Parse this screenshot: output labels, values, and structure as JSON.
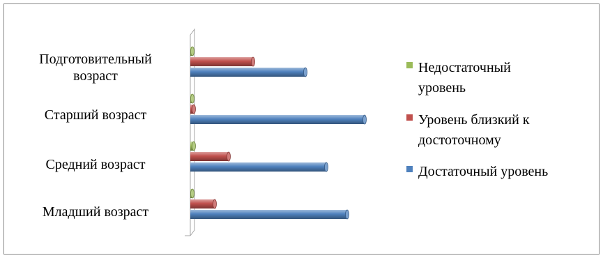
{
  "chart_data": {
    "type": "bar",
    "orientation": "horizontal",
    "categories": [
      [
        "Подготовительный",
        "возраст"
      ],
      [
        "Старший возраст"
      ],
      [
        "Средний возраст"
      ],
      [
        "Младший возраст"
      ]
    ],
    "series": [
      {
        "name": [
          "Недостаточный",
          "уровень"
        ],
        "color": "#9bbb59",
        "values": [
          0,
          0,
          1,
          0
        ]
      },
      {
        "name": [
          "Уровень близкий к",
          "достоточному"
        ],
        "color": "#c0504d",
        "values": [
          18,
          1,
          11,
          7
        ]
      },
      {
        "name": [
          "Достаточный уровень"
        ],
        "color": "#4f81bd",
        "values": [
          33,
          50,
          39,
          45
        ]
      }
    ],
    "xlim": [
      0,
      52
    ],
    "grid": false,
    "legend": "right",
    "style": "3d-cylinder"
  }
}
